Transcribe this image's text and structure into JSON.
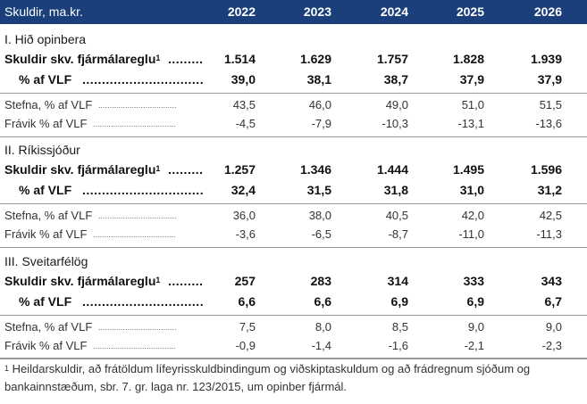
{
  "header": {
    "title": "Skuldir, ma.kr.",
    "years": [
      "2022",
      "2023",
      "2024",
      "2025",
      "2026"
    ]
  },
  "sections": [
    {
      "title": "I. Hið opinbera",
      "debt_label": "Skuldir skv. fjármálareglu",
      "debt_values": [
        "1.514",
        "1.629",
        "1.757",
        "1.828",
        "1.939"
      ],
      "pct_label": "% af VLF",
      "pct_values": [
        "39,0",
        "38,1",
        "38,7",
        "37,9",
        "37,9"
      ],
      "policy_label": "Stefna, % af VLF",
      "policy_values": [
        "43,5",
        "46,0",
        "49,0",
        "51,0",
        "51,5"
      ],
      "dev_label": "Frávik % af VLF",
      "dev_values": [
        "-4,5",
        "-7,9",
        "-10,3",
        "-13,1",
        "-13,6"
      ]
    },
    {
      "title": "II. Ríkissjóður",
      "debt_label": "Skuldir skv. fjármálareglu",
      "debt_values": [
        "1.257",
        "1.346",
        "1.444",
        "1.495",
        "1.596"
      ],
      "pct_label": "% af VLF",
      "pct_values": [
        "32,4",
        "31,5",
        "31,8",
        "31,0",
        "31,2"
      ],
      "policy_label": "Stefna, % af VLF",
      "policy_values": [
        "36,0",
        "38,0",
        "40,5",
        "42,0",
        "42,5"
      ],
      "dev_label": "Frávik % af VLF",
      "dev_values": [
        "-3,6",
        "-6,5",
        "-8,7",
        "-11,0",
        "-11,3"
      ]
    },
    {
      "title": "III. Sveitarfélög",
      "debt_label": "Skuldir skv. fjármálareglu",
      "debt_values": [
        "257",
        "283",
        "314",
        "333",
        "343"
      ],
      "pct_label": "% af VLF",
      "pct_values": [
        "6,6",
        "6,6",
        "6,9",
        "6,9",
        "6,7"
      ],
      "policy_label": "Stefna, % af VLF",
      "policy_values": [
        "7,5",
        "8,0",
        "8,5",
        "9,0",
        "9,0"
      ],
      "dev_label": "Frávik % af VLF",
      "dev_values": [
        "-0,9",
        "-1,4",
        "-1,6",
        "-2,1",
        "-2,3"
      ]
    }
  ],
  "footnote": {
    "marker": "1",
    "text": " Heildarskuldir, að frátöldum lífeyrisskuldbindingum og viðskiptaskuldum og að frádregnum sjóðum og bankainnstæðum, sbr. 7. gr. laga nr. 123/2015, um opinber fjármál."
  },
  "colors": {
    "header_bg": "#1a3f7a",
    "header_text": "#ffffff",
    "rule": "#9a9a9a"
  }
}
